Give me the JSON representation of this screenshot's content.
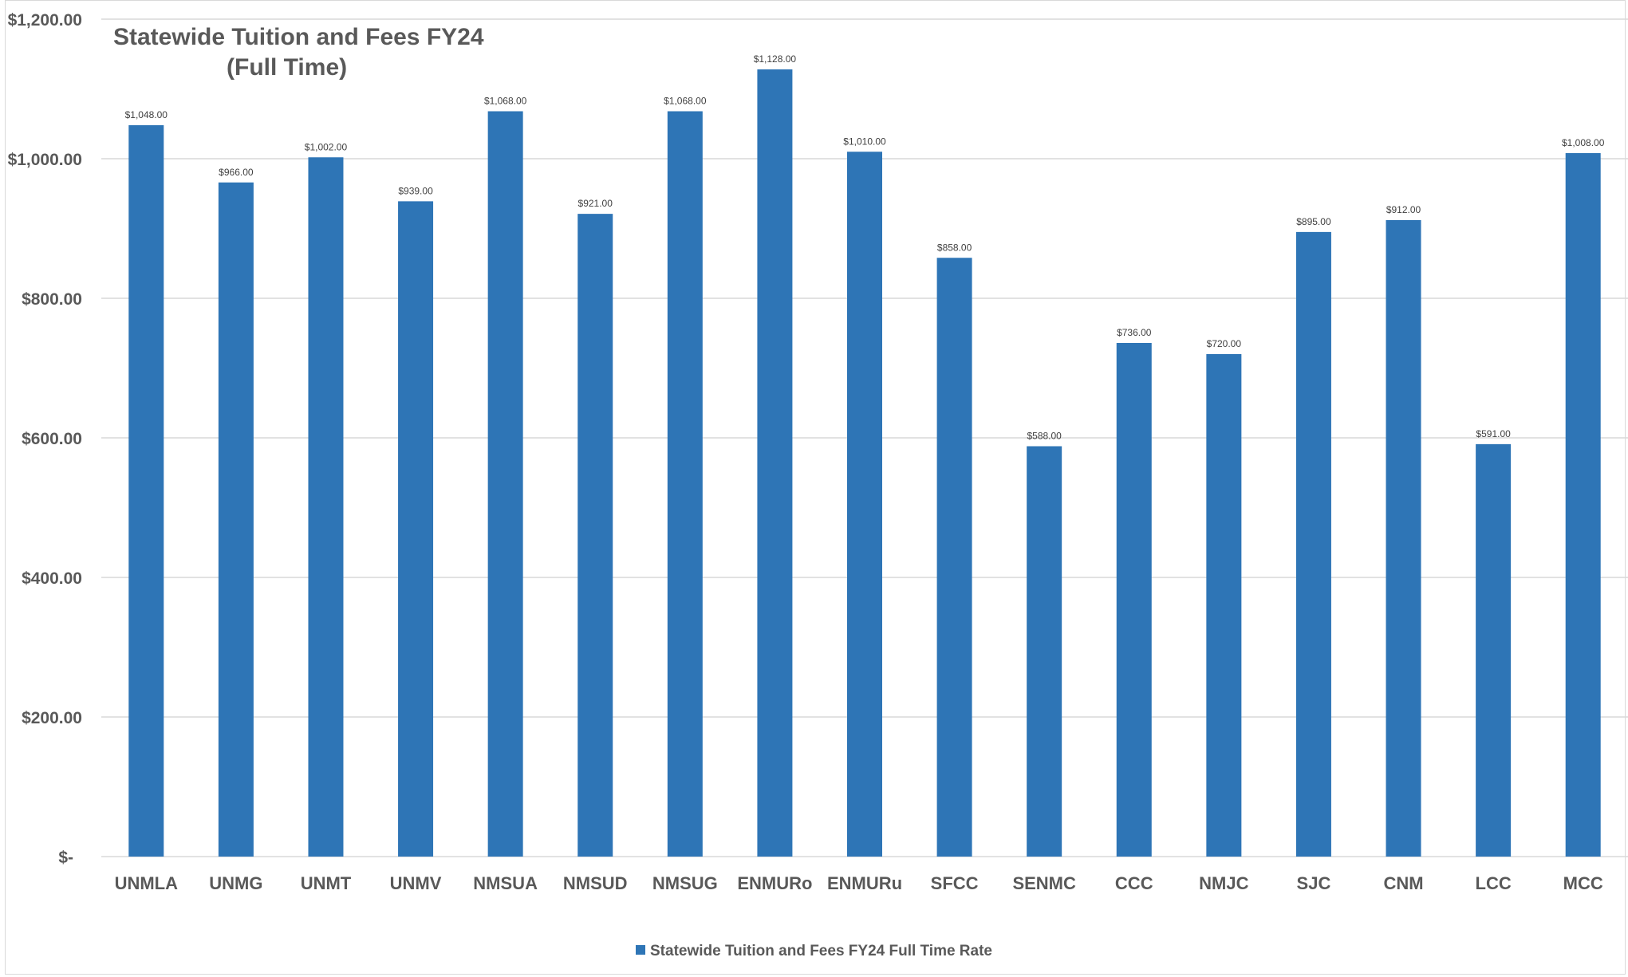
{
  "colors": {
    "bar": "#2E75B6",
    "grid": "#D9D9D9",
    "text": "#595959"
  },
  "chart_data": {
    "type": "bar",
    "title": "Statewide Tuition and Fees FY24",
    "subtitle": "(Full Time)",
    "categories": [
      "UNMLA",
      "UNMG",
      "UNMT",
      "UNMV",
      "NMSUA",
      "NMSUD",
      "NMSUG",
      "ENMURo",
      "ENMURu",
      "SFCC",
      "SENMC",
      "CCC",
      "NMJC",
      "SJC",
      "CNM",
      "LCC",
      "MCC"
    ],
    "series": [
      {
        "name": "Statewide Tuition and Fees FY24 Full Time Rate",
        "values": [
          1048,
          966,
          1002,
          939,
          1068,
          921,
          1068,
          1128,
          1010,
          858,
          588,
          736,
          720,
          895,
          912,
          591,
          1008
        ]
      }
    ],
    "data_labels": [
      "$1,048.00",
      "$966.00",
      "$1,002.00",
      "$939.00",
      "$1,068.00",
      "$921.00",
      "$1,068.00",
      "$1,128.00",
      "$1,010.00",
      "$858.00",
      "$588.00",
      "$736.00",
      "$720.00",
      "$895.00",
      "$912.00",
      "$591.00",
      "$1,008.00"
    ],
    "ylim": [
      0,
      1200
    ],
    "yticks": [
      0,
      200,
      400,
      600,
      800,
      1000,
      1200
    ],
    "ytick_labels": [
      "$-",
      "$200.00",
      "$400.00",
      "$600.00",
      "$800.00",
      "$1,000.00",
      "$1,200.00"
    ],
    "grid": true,
    "legend": "bottom",
    "xlabel": "",
    "ylabel": ""
  }
}
